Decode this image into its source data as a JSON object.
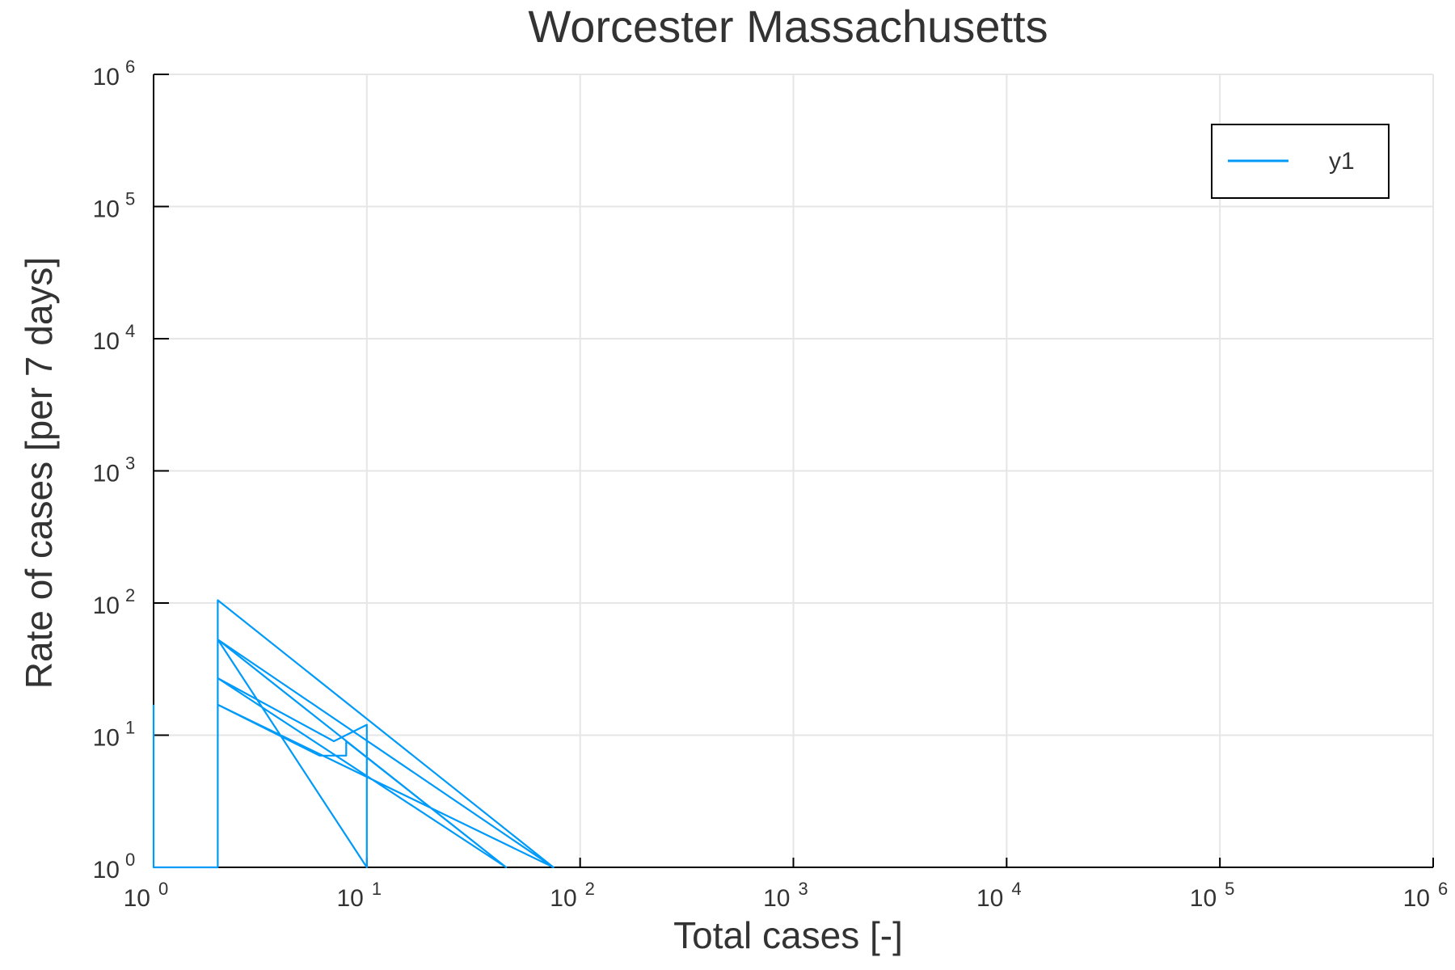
{
  "chart_data": {
    "type": "line",
    "title": "Worcester Massachusetts",
    "xlabel": "Total cases [-]",
    "ylabel": "Rate of cases [per 7 days]",
    "xscale": "log",
    "yscale": "log",
    "xlim": [
      1,
      1000000
    ],
    "ylim": [
      1,
      1000000
    ],
    "grid": true,
    "legend_position": "top-right",
    "colors": {
      "series": "#009af9",
      "grid": "#e6e6e6",
      "axis": "#000000",
      "text": "#333333"
    },
    "x_ticks": [
      {
        "base": "10",
        "exp": "0",
        "value": 1
      },
      {
        "base": "10",
        "exp": "1",
        "value": 10
      },
      {
        "base": "10",
        "exp": "2",
        "value": 100
      },
      {
        "base": "10",
        "exp": "3",
        "value": 1000
      },
      {
        "base": "10",
        "exp": "4",
        "value": 10000
      },
      {
        "base": "10",
        "exp": "5",
        "value": 100000
      },
      {
        "base": "10",
        "exp": "6",
        "value": 1000000
      }
    ],
    "y_ticks": [
      {
        "base": "10",
        "exp": "0",
        "value": 1
      },
      {
        "base": "10",
        "exp": "1",
        "value": 10
      },
      {
        "base": "10",
        "exp": "2",
        "value": 100
      },
      {
        "base": "10",
        "exp": "3",
        "value": 1000
      },
      {
        "base": "10",
        "exp": "4",
        "value": 10000
      },
      {
        "base": "10",
        "exp": "5",
        "value": 100000
      },
      {
        "base": "10",
        "exp": "6",
        "value": 1000000
      }
    ],
    "series": [
      {
        "name": "y1",
        "points": [
          [
            1,
            17
          ],
          [
            1,
            1
          ],
          [
            2,
            1
          ],
          [
            2,
            105
          ],
          [
            75,
            1
          ],
          [
            2,
            53
          ],
          [
            45,
            1
          ],
          [
            2,
            27
          ],
          [
            7,
            9
          ],
          [
            10,
            12
          ],
          [
            10,
            1
          ],
          [
            2,
            53
          ],
          [
            75,
            1
          ],
          [
            2,
            17
          ],
          [
            6,
            7
          ],
          [
            8,
            7
          ],
          [
            8,
            9
          ],
          [
            45,
            1
          ]
        ]
      }
    ]
  }
}
